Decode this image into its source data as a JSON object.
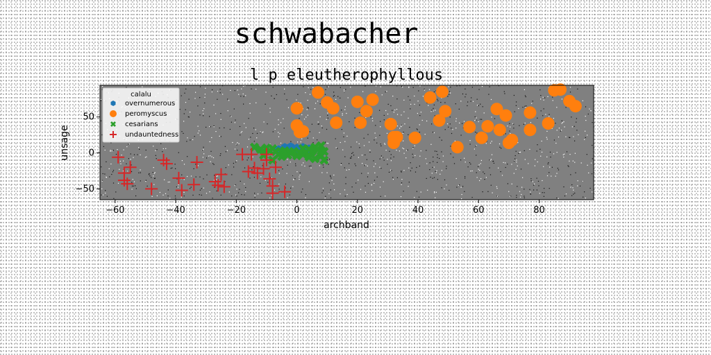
{
  "figure_title": "schwabacher",
  "chart_data": {
    "type": "scatter",
    "title": "l p eleutherophyllous",
    "xlabel": "archband",
    "ylabel": "unsage",
    "xlim": [
      -65,
      98
    ],
    "ylim": [
      -65,
      94
    ],
    "xticks": [
      -60,
      -40,
      -20,
      0,
      20,
      40,
      60,
      80
    ],
    "yticks": [
      -50,
      0,
      50
    ],
    "grid": false,
    "plot_background": "#808080",
    "legend": {
      "title": "calalu",
      "placement": "upper-left"
    },
    "series": [
      {
        "name": "overnumerous",
        "marker": "hexagon",
        "color": "#1f77b4",
        "points": [
          [
            -6,
            5
          ],
          [
            -5,
            3
          ],
          [
            -4,
            8
          ],
          [
            -3,
            6
          ],
          [
            -2,
            9
          ],
          [
            -1,
            5
          ],
          [
            0,
            7
          ],
          [
            1,
            4
          ],
          [
            2,
            8
          ],
          [
            3,
            6
          ],
          [
            -3,
            2
          ],
          [
            -1,
            3
          ],
          [
            1,
            2
          ],
          [
            3,
            3
          ],
          [
            4,
            6
          ]
        ]
      },
      {
        "name": "peromyscus",
        "marker": "circle",
        "color": "#ff7f0e",
        "points": [
          [
            0,
            62
          ],
          [
            0,
            38
          ],
          [
            1,
            29
          ],
          [
            2,
            30
          ],
          [
            7,
            84
          ],
          [
            10,
            70
          ],
          [
            12,
            62
          ],
          [
            13,
            42
          ],
          [
            20,
            71
          ],
          [
            21,
            42
          ],
          [
            23,
            58
          ],
          [
            25,
            74
          ],
          [
            31,
            40
          ],
          [
            32,
            14
          ],
          [
            32,
            22
          ],
          [
            33,
            22
          ],
          [
            39,
            21
          ],
          [
            44,
            77
          ],
          [
            47,
            45
          ],
          [
            48,
            85
          ],
          [
            49,
            58
          ],
          [
            53,
            8
          ],
          [
            57,
            36
          ],
          [
            61,
            21
          ],
          [
            63,
            37
          ],
          [
            66,
            61
          ],
          [
            67,
            32
          ],
          [
            69,
            52
          ],
          [
            70,
            14
          ],
          [
            71,
            18
          ],
          [
            77,
            56
          ],
          [
            77,
            32
          ],
          [
            83,
            41
          ],
          [
            85,
            87
          ],
          [
            87,
            88
          ],
          [
            90,
            72
          ],
          [
            92,
            65
          ]
        ]
      },
      {
        "name": "cesarians",
        "marker": "x",
        "color": "#2ca02c",
        "points": [
          [
            -14,
            8
          ],
          [
            -12,
            5
          ],
          [
            -10,
            7
          ],
          [
            -9,
            3
          ],
          [
            -8,
            6
          ],
          [
            -7,
            2
          ],
          [
            -6,
            -2
          ],
          [
            -5,
            1
          ],
          [
            -4,
            3
          ],
          [
            -3,
            -3
          ],
          [
            -2,
            0
          ],
          [
            -1,
            2
          ],
          [
            0,
            -4
          ],
          [
            1,
            0
          ],
          [
            2,
            -2
          ],
          [
            3,
            1
          ],
          [
            4,
            -6
          ],
          [
            5,
            2
          ],
          [
            6,
            -8
          ],
          [
            6,
            8
          ],
          [
            7,
            5
          ],
          [
            8,
            -4
          ],
          [
            8,
            10
          ],
          [
            9,
            2
          ],
          [
            9,
            -10
          ],
          [
            -8,
            -10
          ],
          [
            -5,
            -5
          ],
          [
            4,
            5
          ],
          [
            -11,
            -3
          ],
          [
            2,
            6
          ]
        ]
      },
      {
        "name": "undauntedness",
        "marker": "plus",
        "color": "#d62728",
        "points": [
          [
            -59,
            -6
          ],
          [
            -57,
            -28
          ],
          [
            -57,
            -38
          ],
          [
            -56,
            -43
          ],
          [
            -55,
            -20
          ],
          [
            -48,
            -50
          ],
          [
            -44,
            -10
          ],
          [
            -43,
            -15
          ],
          [
            -39,
            -35
          ],
          [
            -38,
            -52
          ],
          [
            -34,
            -44
          ],
          [
            -33,
            -13
          ],
          [
            -27,
            -40
          ],
          [
            -26,
            -45
          ],
          [
            -25,
            -30
          ],
          [
            -24,
            -47
          ],
          [
            -18,
            -2
          ],
          [
            -16,
            -26
          ],
          [
            -15,
            -2
          ],
          [
            -14,
            -21
          ],
          [
            -13,
            -28
          ],
          [
            -11,
            -22
          ],
          [
            -10,
            -2
          ],
          [
            -10,
            -10
          ],
          [
            -9,
            -36
          ],
          [
            -8,
            -46
          ],
          [
            -8,
            -56
          ],
          [
            -7,
            -20
          ],
          [
            -4,
            -54
          ]
        ]
      }
    ]
  }
}
